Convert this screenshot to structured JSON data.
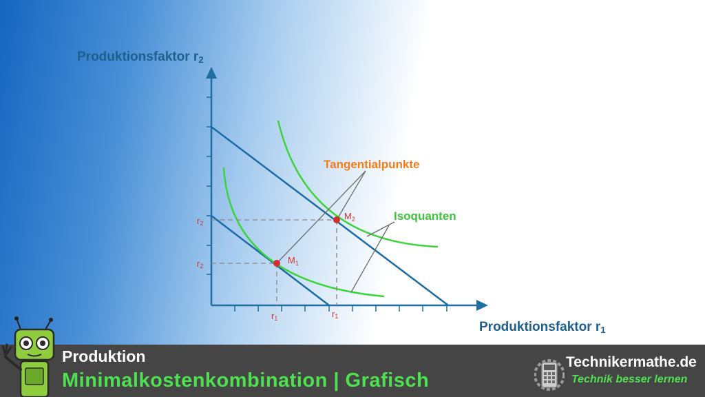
{
  "diagram": {
    "y_axis_title": "Produktionsfaktor r",
    "y_axis_sub": "2",
    "x_axis_title": "Produktionsfaktor r",
    "x_axis_sub": "1",
    "tick_labels": {
      "r2_high_main": "r",
      "r2_high_sub": "2",
      "r2_low_main": "r",
      "r2_low_sub": "2",
      "r1_left_main": "r",
      "r1_left_sub": "1",
      "r1_right_main": "r",
      "r1_right_sub": "1"
    },
    "points": {
      "m1_main": "M",
      "m1_sub": "1",
      "m2_main": "M",
      "m2_sub": "2"
    },
    "annotations": {
      "tangent_points": "Tangentialpunkte",
      "isoquants": "Isoquanten"
    },
    "colors": {
      "axis": "#1f6fa0",
      "budget_lines": "#1a6aa6",
      "isoquants": "#3cd43c",
      "points": "#d32f2f",
      "tangent_label": "#ef7d1a",
      "isoquant_label": "#3cc43c"
    }
  },
  "footer": {
    "subject": "Produktion",
    "topic": "Minimalkostenkombination | Grafisch",
    "brand_name": "Technikermathe.de",
    "brand_tagline": "Technik besser lernen",
    "mascot_icon": "robot-mascot-icon",
    "brand_icon": "calculator-icon"
  }
}
